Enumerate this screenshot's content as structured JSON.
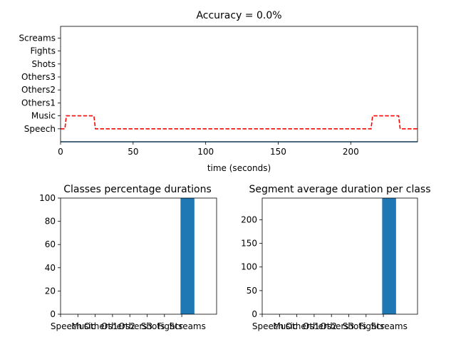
{
  "chart_data": [
    {
      "type": "line",
      "title": "Accuracy = 0.0%",
      "xlabel": "time (seconds)",
      "ylabel": "",
      "xlim": [
        0,
        246
      ],
      "x_ticks": [
        0,
        50,
        100,
        150,
        200
      ],
      "y_categories": [
        "Speech",
        "Music",
        "Others1",
        "Others2",
        "Others3",
        "Shots",
        "Fights",
        "Screams"
      ],
      "ylim": [
        -1,
        7.9
      ],
      "grid": false,
      "series": [
        {
          "color": "#1f77b4",
          "style": "solid",
          "x": [
            0,
            246
          ],
          "y": [
            -1,
            -1
          ]
        },
        {
          "color": "#ff0000",
          "style": "dashed",
          "x": [
            0,
            3,
            4,
            23,
            24,
            214,
            215,
            233,
            234,
            246
          ],
          "y": [
            0,
            0,
            1,
            1,
            0,
            0,
            1,
            1,
            0,
            0
          ]
        }
      ]
    },
    {
      "type": "bar",
      "title": "Classes percentage durations",
      "categories": [
        "Speech",
        "Music",
        "Others1",
        "Others2",
        "Others3",
        "Shots",
        "Fights",
        "Screams"
      ],
      "values": [
        0,
        0,
        0,
        0,
        0,
        0,
        0,
        100
      ],
      "ylim": [
        0,
        100
      ],
      "y_ticks": [
        0,
        20,
        40,
        60,
        80,
        100
      ],
      "bar_color": "#1f77b4"
    },
    {
      "type": "bar",
      "title": "Segment average duration per class",
      "categories": [
        "Speech",
        "Music",
        "Others1",
        "Others2",
        "Others3",
        "Shots",
        "Fights",
        "Screams"
      ],
      "values": [
        0,
        0,
        0,
        0,
        0,
        0,
        0,
        246
      ],
      "ylim": [
        0,
        246
      ],
      "y_ticks": [
        0,
        50,
        100,
        150,
        200
      ],
      "bar_color": "#1f77b4"
    }
  ]
}
